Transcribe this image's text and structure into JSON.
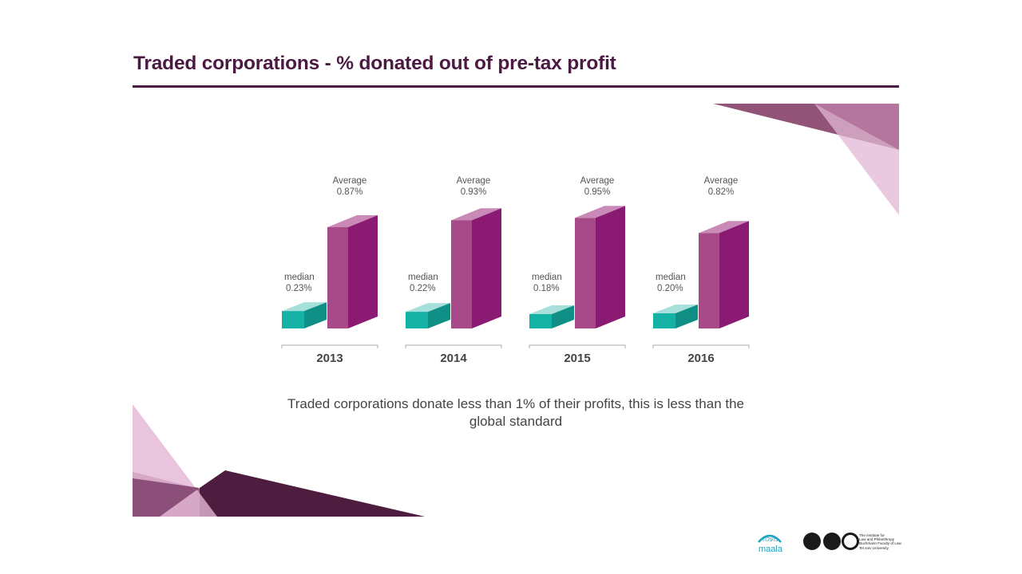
{
  "slide": {
    "title": "Traded corporations - % donated out of pre-tax profit",
    "caption": "Traded corporations donate less than 1% of their profits, this is less than the global standard"
  },
  "colors": {
    "title": "#4a1a42",
    "average_front": "#a84a8a",
    "average_side": "#8a1a72",
    "average_top": "#c98ab8",
    "median_front": "#14b1a5",
    "median_side": "#0f8f86",
    "median_top": "#a7dfda",
    "deco_dark": "#4e1c3e",
    "deco_mid": "#8c4a72",
    "deco_light": "#e2b7d4"
  },
  "chart_data": {
    "type": "bar",
    "title": "Traded corporations - % donated out of pre-tax profit",
    "categories": [
      "2013",
      "2014",
      "2015",
      "2016"
    ],
    "series": [
      {
        "name": "median",
        "values": [
          0.23,
          0.22,
          0.18,
          0.2
        ]
      },
      {
        "name": "Average",
        "values": [
          0.87,
          0.93,
          0.95,
          0.82
        ]
      }
    ],
    "labels": {
      "median": [
        "0.23%",
        "0.22%",
        "0.18%",
        "0.20%"
      ],
      "Average": [
        "0.87%",
        "0.93%",
        "0.95%",
        "0.82%"
      ]
    },
    "unit": "%",
    "xlabel": "",
    "ylabel": "",
    "ylim": [
      0,
      1
    ]
  },
  "footer": {
    "logo_text": "maala",
    "institute_text": [
      "The Institute for",
      "Law and Philanthropy",
      "Buchmann Faculty of Law",
      "Tel Aviv University"
    ]
  }
}
